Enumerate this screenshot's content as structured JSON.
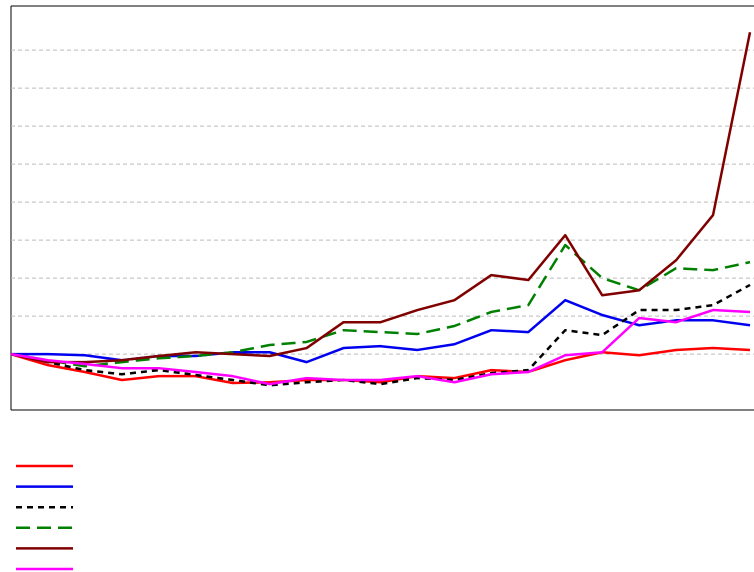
{
  "chart_data": {
    "type": "line",
    "x": [
      0,
      5,
      10,
      15,
      20,
      25,
      30,
      35,
      40,
      45,
      50,
      55,
      60,
      65,
      70,
      75,
      80,
      85,
      90,
      95,
      100
    ],
    "xlim": [
      0,
      100
    ],
    "ylim": [
      -1.47,
      9.16
    ],
    "yticks": [
      0,
      1,
      2,
      3,
      4,
      5,
      6,
      7,
      8
    ],
    "grid": true,
    "series": [
      {
        "color": "#ff0000",
        "dash": "none",
        "values": [
          0,
          -0.29,
          -0.47,
          -0.68,
          -0.58,
          -0.58,
          -0.76,
          -0.74,
          -0.68,
          -0.68,
          -0.74,
          -0.58,
          -0.63,
          -0.42,
          -0.47,
          -0.16,
          0.05,
          -0.03,
          0.11,
          0.16,
          0.11
        ]
      },
      {
        "color": "#0000ee",
        "dash": "none",
        "values": [
          0,
          0,
          -0.03,
          -0.16,
          -0.05,
          -0.05,
          0.05,
          0.05,
          -0.21,
          0.16,
          0.21,
          0.11,
          0.26,
          0.63,
          0.58,
          1.42,
          1.03,
          0.76,
          0.89,
          0.89,
          0.76
        ]
      },
      {
        "color": "#000000",
        "dash": "6,5",
        "values": [
          0,
          -0.21,
          -0.42,
          -0.53,
          -0.42,
          -0.55,
          -0.68,
          -0.82,
          -0.74,
          -0.68,
          -0.79,
          -0.63,
          -0.68,
          -0.5,
          -0.42,
          0.63,
          0.5,
          1.16,
          1.16,
          1.29,
          1.82
        ]
      },
      {
        "color": "#008000",
        "dash": "14,7",
        "values": [
          0,
          -0.16,
          -0.32,
          -0.21,
          -0.11,
          -0.05,
          0.05,
          0.24,
          0.32,
          0.63,
          0.58,
          0.53,
          0.74,
          1.11,
          1.29,
          2.87,
          2.0,
          1.68,
          2.26,
          2.21,
          2.42
        ]
      },
      {
        "color": "#800000",
        "dash": "none",
        "values": [
          0,
          -0.21,
          -0.21,
          -0.16,
          -0.05,
          0.05,
          0,
          -0.05,
          0.16,
          0.84,
          0.84,
          1.16,
          1.42,
          2.08,
          1.95,
          3.13,
          1.55,
          1.68,
          2.47,
          3.66,
          8.47
        ]
      },
      {
        "color": "#ff00ff",
        "dash": "none",
        "values": [
          0,
          -0.16,
          -0.26,
          -0.37,
          -0.37,
          -0.47,
          -0.58,
          -0.79,
          -0.63,
          -0.68,
          -0.68,
          -0.58,
          -0.74,
          -0.53,
          -0.47,
          -0.03,
          0.05,
          0.95,
          0.84,
          1.16,
          1.11
        ]
      }
    ]
  }
}
